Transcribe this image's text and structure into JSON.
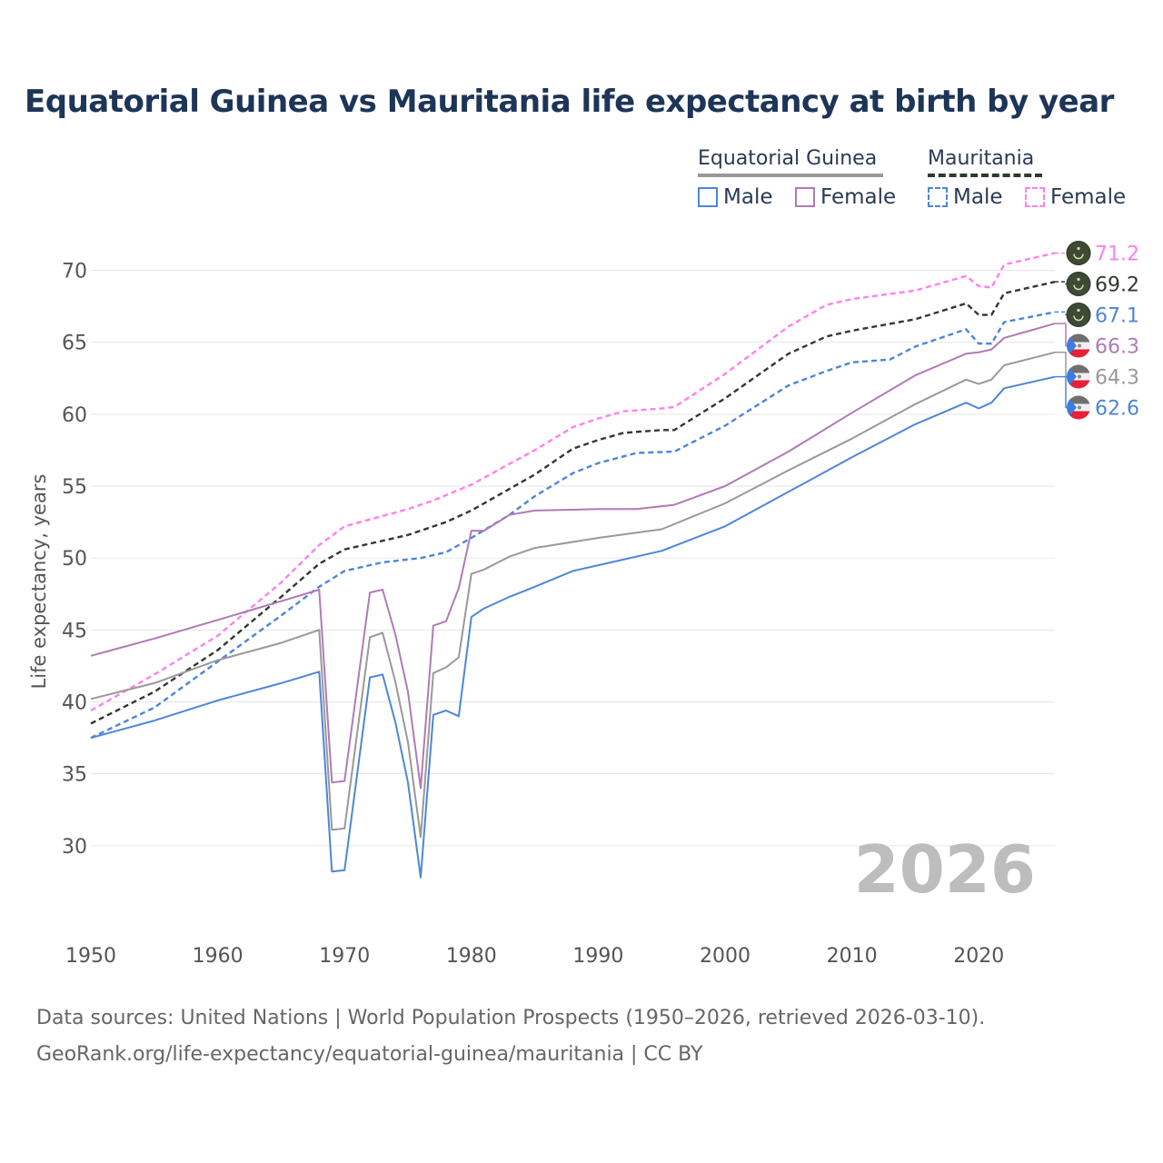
{
  "title": "Equatorial Guinea vs Mauritania life expectancy at birth by year",
  "legend": {
    "groups": [
      {
        "name": "Equatorial Guinea",
        "color": "#999999",
        "dashed": false
      },
      {
        "name": "Mauritania",
        "color": "#2f3a2f",
        "dashed": true
      }
    ],
    "male_label": "Male",
    "female_label": "Female"
  },
  "footer": {
    "source": "Data sources: United Nations | World Population Prospects (1950–2026, retrieved 2026-03-10).",
    "link": "GeoRank.org/life-expectancy/equatorial-guinea/mauritania | CC BY"
  },
  "chart_data": {
    "type": "line",
    "title": "Equatorial Guinea vs Mauritania life expectancy at birth by year",
    "xlabel": "",
    "ylabel": "Life expectancy, years",
    "xlim": [
      1950,
      2026
    ],
    "ylim": [
      25,
      73
    ],
    "x_ticks": [
      1950,
      1960,
      1970,
      1980,
      1990,
      2000,
      2010,
      2020
    ],
    "y_ticks": [
      30,
      35,
      40,
      45,
      50,
      55,
      60,
      65,
      70
    ],
    "year_label": "2026",
    "series": [
      {
        "name": "Mauritania Female",
        "color": "#ff80f0",
        "dashed": true,
        "end_label": "71.2",
        "flag": "mauritania",
        "points": [
          [
            1950,
            39.4
          ],
          [
            1955,
            41.9
          ],
          [
            1960,
            44.6
          ],
          [
            1965,
            48.3
          ],
          [
            1968,
            50.9
          ],
          [
            1970,
            52.2
          ],
          [
            1975,
            53.4
          ],
          [
            1977,
            54.0
          ],
          [
            1980,
            55.1
          ],
          [
            1985,
            57.5
          ],
          [
            1988,
            59.1
          ],
          [
            1990,
            59.7
          ],
          [
            1992,
            60.2
          ],
          [
            1995,
            60.4
          ],
          [
            1996,
            60.5
          ],
          [
            2000,
            62.8
          ],
          [
            2005,
            66.1
          ],
          [
            2008,
            67.6
          ],
          [
            2010,
            68.0
          ],
          [
            2015,
            68.6
          ],
          [
            2019,
            69.6
          ],
          [
            2020,
            68.9
          ],
          [
            2021,
            68.8
          ],
          [
            2022,
            70.4
          ],
          [
            2026,
            71.2
          ]
        ]
      },
      {
        "name": "Mauritania Both",
        "color": "#2f3a2f",
        "dashed": true,
        "end_label": "69.2",
        "flag": "mauritania",
        "points": [
          [
            1950,
            38.5
          ],
          [
            1955,
            40.7
          ],
          [
            1960,
            43.6
          ],
          [
            1965,
            47.3
          ],
          [
            1968,
            49.6
          ],
          [
            1970,
            50.6
          ],
          [
            1975,
            51.6
          ],
          [
            1978,
            52.5
          ],
          [
            1980,
            53.3
          ],
          [
            1985,
            55.8
          ],
          [
            1988,
            57.6
          ],
          [
            1990,
            58.2
          ],
          [
            1992,
            58.7
          ],
          [
            1995,
            58.9
          ],
          [
            1996,
            58.9
          ],
          [
            2000,
            61.1
          ],
          [
            2005,
            64.2
          ],
          [
            2008,
            65.4
          ],
          [
            2010,
            65.8
          ],
          [
            2015,
            66.6
          ],
          [
            2019,
            67.7
          ],
          [
            2020,
            66.9
          ],
          [
            2021,
            66.9
          ],
          [
            2022,
            68.4
          ],
          [
            2026,
            69.2
          ]
        ]
      },
      {
        "name": "Mauritania Male",
        "color": "#4d86d8",
        "dashed": true,
        "end_label": "67.1",
        "flag": "mauritania",
        "points": [
          [
            1950,
            37.5
          ],
          [
            1955,
            39.6
          ],
          [
            1960,
            42.8
          ],
          [
            1965,
            46.0
          ],
          [
            1968,
            48.0
          ],
          [
            1970,
            49.1
          ],
          [
            1973,
            49.7
          ],
          [
            1976,
            50.0
          ],
          [
            1978,
            50.4
          ],
          [
            1980,
            51.4
          ],
          [
            1983,
            53.0
          ],
          [
            1985,
            54.3
          ],
          [
            1988,
            55.9
          ],
          [
            1990,
            56.6
          ],
          [
            1993,
            57.3
          ],
          [
            1996,
            57.4
          ],
          [
            2000,
            59.2
          ],
          [
            2005,
            62.0
          ],
          [
            2008,
            63.0
          ],
          [
            2010,
            63.6
          ],
          [
            2013,
            63.8
          ],
          [
            2015,
            64.7
          ],
          [
            2019,
            65.9
          ],
          [
            2020,
            64.9
          ],
          [
            2021,
            64.9
          ],
          [
            2022,
            66.4
          ],
          [
            2026,
            67.1
          ]
        ]
      },
      {
        "name": "Equatorial Guinea Female",
        "color": "#b07ab6",
        "dashed": false,
        "end_label": "66.3",
        "flag": "equatorial-guinea",
        "points": [
          [
            1950,
            43.2
          ],
          [
            1955,
            44.4
          ],
          [
            1960,
            45.7
          ],
          [
            1965,
            47.0
          ],
          [
            1968,
            47.8
          ],
          [
            1969,
            34.4
          ],
          [
            1970,
            34.5
          ],
          [
            1972,
            47.6
          ],
          [
            1973,
            47.8
          ],
          [
            1974,
            44.7
          ],
          [
            1975,
            40.7
          ],
          [
            1976,
            34.0
          ],
          [
            1977,
            45.3
          ],
          [
            1978,
            45.6
          ],
          [
            1979,
            47.9
          ],
          [
            1980,
            51.9
          ],
          [
            1981,
            51.9
          ],
          [
            1983,
            53.0
          ],
          [
            1985,
            53.3
          ],
          [
            1990,
            53.4
          ],
          [
            1993,
            53.4
          ],
          [
            1996,
            53.7
          ],
          [
            2000,
            55.0
          ],
          [
            2005,
            57.4
          ],
          [
            2010,
            60.1
          ],
          [
            2015,
            62.7
          ],
          [
            2019,
            64.2
          ],
          [
            2020,
            64.3
          ],
          [
            2021,
            64.5
          ],
          [
            2022,
            65.3
          ],
          [
            2026,
            66.3
          ]
        ]
      },
      {
        "name": "Equatorial Guinea Both",
        "color": "#999999",
        "dashed": false,
        "end_label": "64.3",
        "flag": "equatorial-guinea",
        "points": [
          [
            1950,
            40.2
          ],
          [
            1955,
            41.3
          ],
          [
            1960,
            42.9
          ],
          [
            1965,
            44.1
          ],
          [
            1968,
            45.0
          ],
          [
            1969,
            31.1
          ],
          [
            1970,
            31.2
          ],
          [
            1972,
            44.5
          ],
          [
            1973,
            44.8
          ],
          [
            1974,
            41.4
          ],
          [
            1975,
            37.2
          ],
          [
            1976,
            30.6
          ],
          [
            1977,
            42.0
          ],
          [
            1978,
            42.4
          ],
          [
            1979,
            43.1
          ],
          [
            1980,
            48.9
          ],
          [
            1981,
            49.2
          ],
          [
            1983,
            50.1
          ],
          [
            1985,
            50.7
          ],
          [
            1990,
            51.4
          ],
          [
            1995,
            52.0
          ],
          [
            2000,
            53.8
          ],
          [
            2005,
            56.1
          ],
          [
            2010,
            58.3
          ],
          [
            2015,
            60.7
          ],
          [
            2019,
            62.4
          ],
          [
            2020,
            62.1
          ],
          [
            2021,
            62.4
          ],
          [
            2022,
            63.4
          ],
          [
            2026,
            64.3
          ]
        ]
      },
      {
        "name": "Equatorial Guinea Male",
        "color": "#4d86d8",
        "dashed": false,
        "end_label": "62.6",
        "flag": "equatorial-guinea",
        "points": [
          [
            1950,
            37.5
          ],
          [
            1955,
            38.7
          ],
          [
            1960,
            40.1
          ],
          [
            1965,
            41.3
          ],
          [
            1968,
            42.1
          ],
          [
            1969,
            28.2
          ],
          [
            1970,
            28.3
          ],
          [
            1972,
            41.7
          ],
          [
            1973,
            41.9
          ],
          [
            1974,
            38.6
          ],
          [
            1975,
            34.4
          ],
          [
            1976,
            27.8
          ],
          [
            1977,
            39.1
          ],
          [
            1978,
            39.4
          ],
          [
            1979,
            39.0
          ],
          [
            1980,
            45.9
          ],
          [
            1981,
            46.5
          ],
          [
            1983,
            47.3
          ],
          [
            1985,
            48.0
          ],
          [
            1988,
            49.1
          ],
          [
            1990,
            49.5
          ],
          [
            1995,
            50.5
          ],
          [
            2000,
            52.2
          ],
          [
            2005,
            54.6
          ],
          [
            2010,
            57.0
          ],
          [
            2015,
            59.3
          ],
          [
            2019,
            60.8
          ],
          [
            2020,
            60.4
          ],
          [
            2021,
            60.8
          ],
          [
            2022,
            61.8
          ],
          [
            2026,
            62.6
          ]
        ]
      }
    ]
  }
}
